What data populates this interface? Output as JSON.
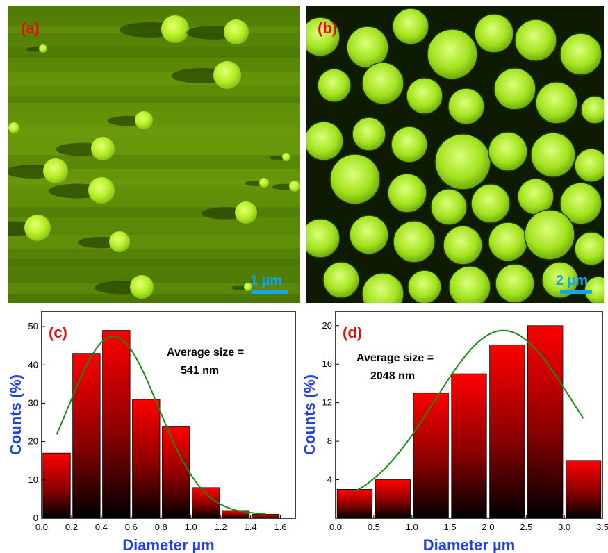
{
  "panel_a": {
    "label": "(a)",
    "scale_bar": "1 µm",
    "colors": {
      "background": "#5a8a06",
      "particle": "#b8ef28",
      "label": "#e01010",
      "scale": "#16a6e8"
    }
  },
  "panel_b": {
    "label": "(b)",
    "scale_bar": "2 µm",
    "colors": {
      "background": "#0f1a02",
      "particle": "#9ee01e",
      "label": "#e01010",
      "scale": "#16a6e8"
    }
  },
  "chart_data": [
    {
      "type": "bar",
      "panel_label": "(c)",
      "annotation": [
        "Average size =",
        "541 nm"
      ],
      "xlabel": "Diameter µm",
      "ylabel": "Counts (%)",
      "xlim": [
        0,
        1.7
      ],
      "ylim": [
        0,
        54
      ],
      "xticks": [
        0.0,
        0.2,
        0.4,
        0.6,
        0.8,
        1.0,
        1.2,
        1.4,
        1.6
      ],
      "xtick_labels": [
        "0.0",
        "0.2",
        "0.4",
        "0.6",
        "0.8",
        "1.0",
        "1.2",
        "1.4",
        "1.6"
      ],
      "yticks": [
        0,
        10,
        20,
        30,
        40,
        50
      ],
      "ytick_labels": [
        "0",
        "10",
        "20",
        "30",
        "40",
        "50"
      ],
      "bin_width": 0.2,
      "x": [
        0.1,
        0.3,
        0.5,
        0.7,
        0.9,
        1.1,
        1.3,
        1.5
      ],
      "values": [
        17,
        43,
        49,
        31,
        24,
        8,
        2,
        1
      ],
      "fit": {
        "type": "gaussian",
        "amplitude": 46.5,
        "mean": 0.48,
        "sigma": 0.3,
        "offset": 1,
        "x_range": [
          0.1,
          1.5
        ]
      },
      "colors": {
        "bar_top": "#ff0000",
        "bar_bottom": "#000000",
        "fit": "#1a8a1a",
        "axis_label": "#1f3ff0",
        "panel_label": "#e01010"
      }
    },
    {
      "type": "bar",
      "panel_label": "(d)",
      "annotation": [
        "Average size =",
        "2048 nm"
      ],
      "xlabel": "Diameter µm",
      "ylabel": "Counts (%)",
      "xlim": [
        0,
        3.5
      ],
      "ylim": [
        0,
        21.5
      ],
      "xticks": [
        0.0,
        0.5,
        1.0,
        1.5,
        2.0,
        2.5,
        3.0,
        3.5
      ],
      "xtick_labels": [
        "0.0",
        "0.5",
        "1.0",
        "1.5",
        "2.0",
        "2.5",
        "3.0",
        "3.5"
      ],
      "yticks": [
        4,
        8,
        12,
        16,
        20
      ],
      "ytick_labels": [
        "4",
        "8",
        "12",
        "16",
        "20"
      ],
      "bin_width": 0.5,
      "x": [
        0.25,
        0.75,
        1.25,
        1.75,
        2.25,
        2.75,
        3.25
      ],
      "values": [
        3,
        4,
        13,
        15,
        18,
        20,
        6
      ],
      "fit": {
        "type": "gaussian",
        "amplitude": 18.5,
        "mean": 2.2,
        "sigma": 0.9,
        "offset": 1,
        "x_range": [
          0.25,
          3.25
        ]
      },
      "colors": {
        "bar_top": "#ff0000",
        "bar_bottom": "#000000",
        "fit": "#1a8a1a",
        "axis_label": "#1f3ff0",
        "panel_label": "#e01010"
      }
    }
  ]
}
